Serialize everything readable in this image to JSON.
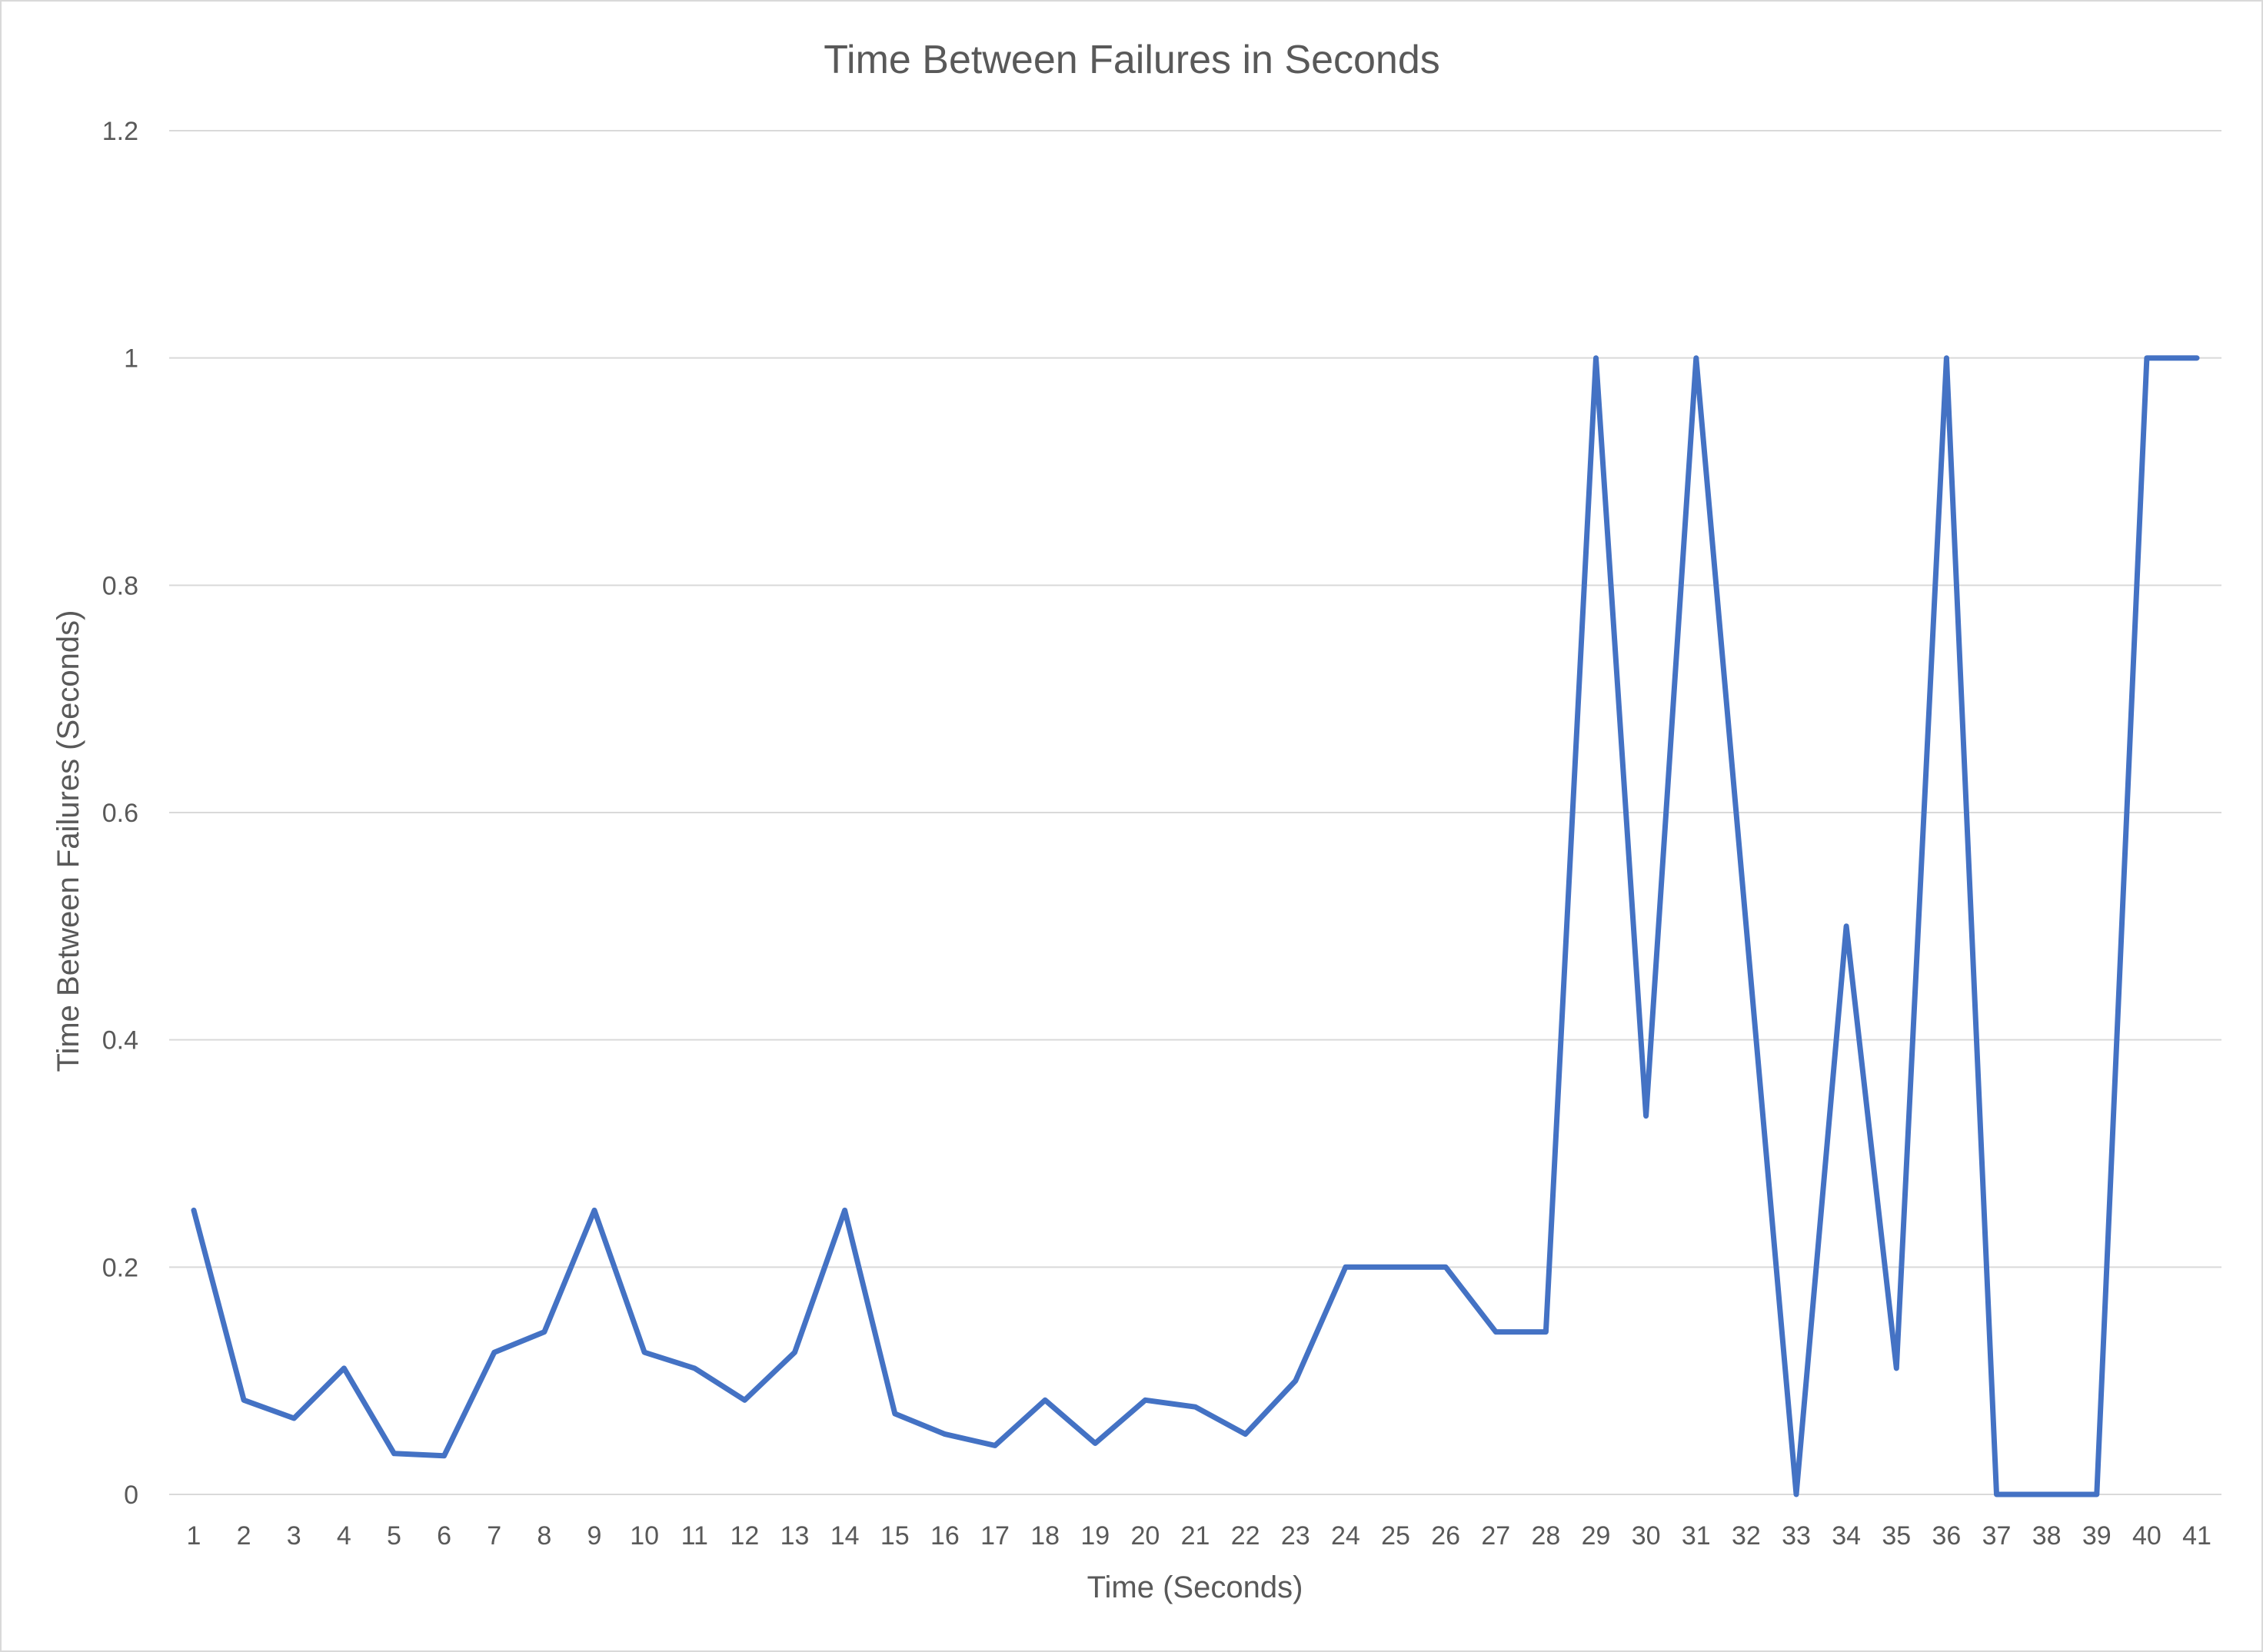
{
  "chart_data": {
    "type": "line",
    "title": "Time Between Failures in Seconds",
    "xlabel": "Time (Seconds)",
    "ylabel": "Time Between Failures (Seconds)",
    "categories": [
      "1",
      "2",
      "3",
      "4",
      "5",
      "6",
      "7",
      "8",
      "9",
      "10",
      "11",
      "12",
      "13",
      "14",
      "15",
      "16",
      "17",
      "18",
      "19",
      "20",
      "21",
      "22",
      "23",
      "24",
      "25",
      "26",
      "27",
      "28",
      "29",
      "30",
      "31",
      "32",
      "33",
      "34",
      "35",
      "36",
      "37",
      "38",
      "39",
      "40",
      "41"
    ],
    "series": [
      {
        "values": [
          0.25,
          0.083,
          0.067,
          0.111,
          0.036,
          0.034,
          0.125,
          0.143,
          0.25,
          0.125,
          0.111,
          0.083,
          0.125,
          0.25,
          0.071,
          0.053,
          0.043,
          0.083,
          0.045,
          0.083,
          0.077,
          0.053,
          0.1,
          0.2,
          0.2,
          0.2,
          0.143,
          0.143,
          1,
          0.333,
          1,
          0.5,
          0,
          0.5,
          0.111,
          1,
          0,
          0,
          0,
          1,
          1
        ]
      }
    ],
    "yticks": [
      "0",
      "0.2",
      "0.4",
      "0.6",
      "0.8",
      "1",
      "1.2"
    ],
    "ylim": [
      0,
      1.2
    ],
    "grid": true,
    "legend": "none",
    "colors": {
      "line": "#4472c4",
      "grid": "#d9d9d9",
      "text": "#595959"
    }
  }
}
